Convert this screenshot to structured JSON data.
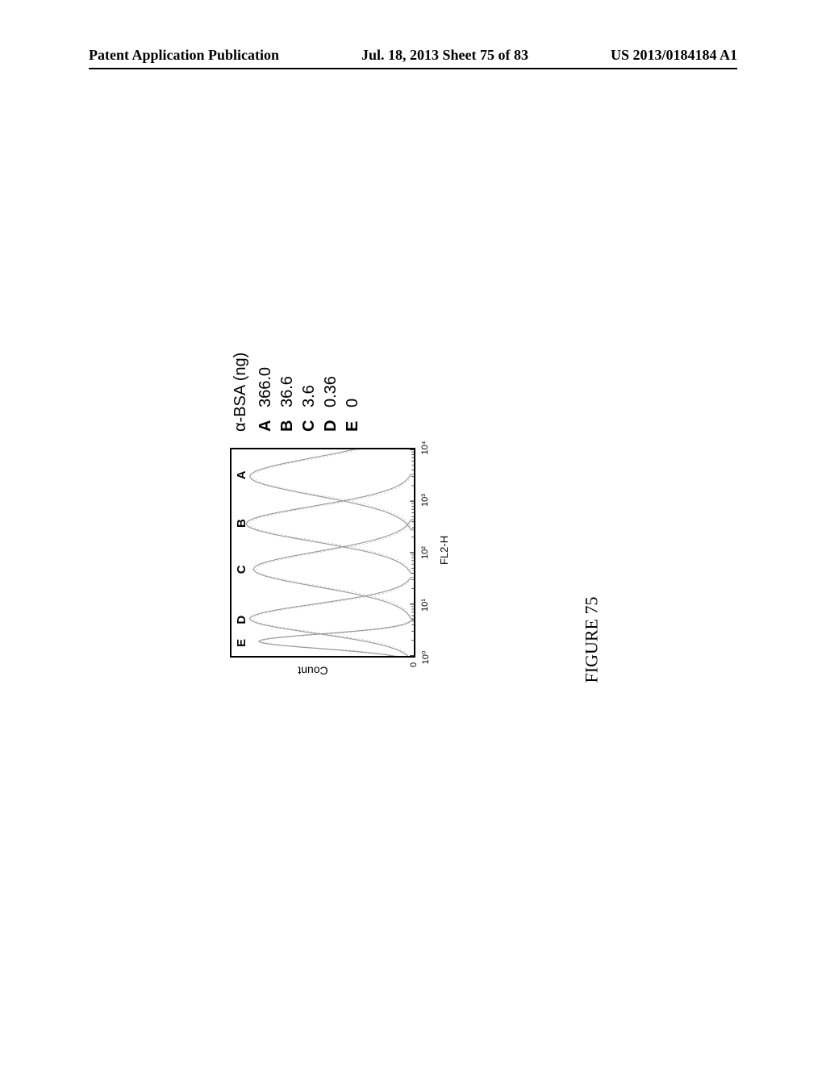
{
  "header": {
    "left": "Patent Application Publication",
    "center": "Jul. 18, 2013  Sheet 75 of 83",
    "right": "US 2013/0184184 A1"
  },
  "figure": {
    "caption": "FIGURE 75",
    "chart": {
      "type": "histogram-overlay",
      "x_axis_label": "FL2-H",
      "y_axis_label": "Count",
      "x_scale": "log",
      "x_ticks": [
        "10⁰",
        "10¹",
        "10²",
        "10³",
        "10⁴"
      ],
      "y_tick_zero": "0",
      "peak_labels": [
        "E",
        "D",
        "C",
        "B",
        "A"
      ],
      "peak_positions_pct": [
        7,
        18,
        42,
        64,
        87
      ],
      "stroke_color": "#999999",
      "stroke_width": 1.2,
      "background_color": "#ffffff",
      "curves": [
        {
          "label": "E",
          "peak_x": 0.07,
          "peak_h": 0.85,
          "width": 0.05
        },
        {
          "label": "D",
          "peak_x": 0.18,
          "peak_h": 0.9,
          "width": 0.1
        },
        {
          "label": "C",
          "peak_x": 0.42,
          "peak_h": 0.88,
          "width": 0.12
        },
        {
          "label": "B",
          "peak_x": 0.64,
          "peak_h": 0.92,
          "width": 0.12
        },
        {
          "label": "A",
          "peak_x": 0.87,
          "peak_h": 0.9,
          "width": 0.13
        }
      ]
    },
    "legend": {
      "title": "α-BSA (ng)",
      "rows": [
        {
          "key": "A",
          "value": "366.0"
        },
        {
          "key": "B",
          "value": "36.6"
        },
        {
          "key": "C",
          "value": "3.6"
        },
        {
          "key": "D",
          "value": "0.36"
        },
        {
          "key": "E",
          "value": "0"
        }
      ]
    }
  }
}
